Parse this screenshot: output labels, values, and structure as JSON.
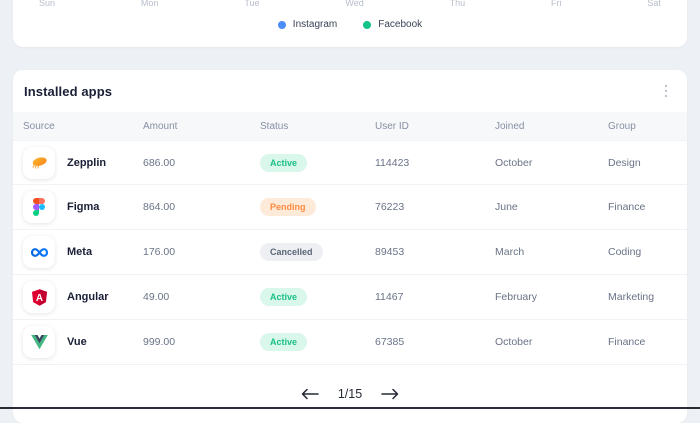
{
  "chart_card": {
    "axis_labels": [
      "Sun",
      "Mon",
      "Tue",
      "Wed",
      "Thu",
      "Fri",
      "Sat"
    ],
    "legend": [
      {
        "label": "Instagram",
        "color": "#4c8df6"
      },
      {
        "label": "Facebook",
        "color": "#12c48b"
      }
    ]
  },
  "installed_apps": {
    "title": "Installed apps",
    "menu_icon": "kebab-menu-icon",
    "columns": [
      "Source",
      "Amount",
      "Status",
      "User ID",
      "Joined",
      "Group"
    ],
    "rows": [
      {
        "source": "Zepplin",
        "icon": "zepplin",
        "amount": "686.00",
        "status": "Active",
        "status_type": "active",
        "user_id": "114423",
        "joined": "October",
        "group": "Design"
      },
      {
        "source": "Figma",
        "icon": "figma",
        "amount": "864.00",
        "status": "Pending",
        "status_type": "pending",
        "user_id": "76223",
        "joined": "June",
        "group": "Finance"
      },
      {
        "source": "Meta",
        "icon": "meta",
        "amount": "176.00",
        "status": "Cancelled",
        "status_type": "cancelled",
        "user_id": "89453",
        "joined": "March",
        "group": "Coding"
      },
      {
        "source": "Angular",
        "icon": "angular",
        "amount": "49.00",
        "status": "Active",
        "status_type": "active",
        "user_id": "11467",
        "joined": "February",
        "group": "Marketing"
      },
      {
        "source": "Vue",
        "icon": "vue",
        "amount": "999.00",
        "status": "Active",
        "status_type": "active",
        "user_id": "67385",
        "joined": "October",
        "group": "Finance"
      }
    ],
    "pagination": {
      "display": "1/15",
      "prev_icon": "arrow-left-icon",
      "next_icon": "arrow-right-icon"
    }
  },
  "colors": {
    "page_background": "#edf0f4",
    "card_background": "#ffffff",
    "status_active_text": "#1cc088",
    "status_active_bg": "#d9f7ea",
    "status_pending_text": "#fa8c44",
    "status_pending_bg": "#feead8",
    "status_cancelled_text": "#5b6575",
    "status_cancelled_bg": "#edeff3"
  }
}
